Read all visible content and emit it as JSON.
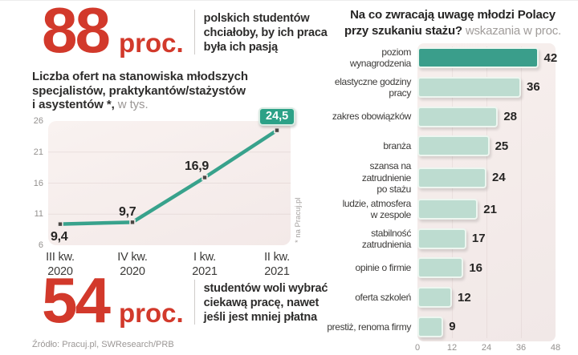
{
  "colors": {
    "accent_red": "#d2392b",
    "teal_dark": "#3a9e8b",
    "teal_light": "#bddcd0",
    "badge_green": "#2ca187",
    "panel_pink": "#f5ecea",
    "text_dark": "#2d2c2b",
    "text_gray": "#9b9795"
  },
  "stat_top": {
    "value": "88",
    "unit": "proc.",
    "lines": [
      "polskich studentów",
      "chciałoby, by ich praca",
      "była ich pasją"
    ]
  },
  "stat_bottom": {
    "value": "54",
    "unit": "proc.",
    "lines": [
      "studentów woli wybrać",
      "ciekawą pracę, nawet",
      "jeśli jest mniej płatna"
    ]
  },
  "source": "Źródło: Pracuj.pl, SWResearch/PRB",
  "chart_data": [
    {
      "type": "line",
      "title": "Liczba ofert na stanowiska młodszych specjalistów, praktykantów/stażystów i asystentów *",
      "title_lines": [
        "Liczba ofert na stanowiska młodszych",
        "specjalistów, praktykantów/stażystów"
      ],
      "title_line3_bold": "i asystentów *,",
      "title_line3_light": "w tys.",
      "footnote": "* na Pracuj.pl",
      "categories": [
        "III kw. 2020",
        "IV kw. 2020",
        "I kw. 2021",
        "II kw. 2021"
      ],
      "category_lines": [
        [
          "III kw.",
          "2020"
        ],
        [
          "IV kw.",
          "2020"
        ],
        [
          "I kw.",
          "2021"
        ],
        [
          "II kw.",
          "2021"
        ]
      ],
      "values": [
        9.4,
        9.7,
        16.9,
        24.5
      ],
      "value_labels": [
        "9,4",
        "9,7",
        "16,9",
        "24,5"
      ],
      "ylim": [
        6,
        26
      ],
      "yticks": [
        26,
        21,
        16,
        11,
        6
      ],
      "grid": "horizontal",
      "legend": "none",
      "line_color": "#38a28c",
      "marker_color": "#4a4744"
    },
    {
      "type": "bar",
      "orientation": "horizontal",
      "title": "Na co zwracają uwagę młodzi Polacy przy szukaniu stażu?",
      "title_line1": "Na co zwracają uwagę młodzi Polacy",
      "title_line2_bold": "przy szukaniu stażu?",
      "subtitle": "wskazania w proc.",
      "categories": [
        "poziom wynagrodzenia",
        "elastyczne godziny pracy",
        "zakres obowiązków",
        "branża",
        "szansa na zatrudnienie po stażu",
        "ludzie, atmosfera w zespole",
        "stabilność zatrudnienia",
        "opinie o firmie",
        "oferta szkoleń",
        "prestiż, renoma firmy"
      ],
      "category_lines": [
        [
          "poziom",
          "wynagrodzenia"
        ],
        [
          "elastyczne godziny",
          "pracy"
        ],
        [
          "zakres obowiązków"
        ],
        [
          "branża"
        ],
        [
          "szansa na zatrudnienie",
          "po stażu"
        ],
        [
          "ludzie, atmosfera",
          "w zespole"
        ],
        [
          "stabilność",
          "zatrudnienia"
        ],
        [
          "opinie o firmie"
        ],
        [
          "oferta szkoleń"
        ],
        [
          "prestiż, renoma firmy"
        ]
      ],
      "values": [
        42,
        36,
        28,
        25,
        24,
        21,
        17,
        16,
        12,
        9
      ],
      "xlim": [
        0,
        48
      ],
      "xticks": [
        0,
        12,
        24,
        36,
        48
      ],
      "highlight_index": 0,
      "bar_color": "#bddcd0",
      "highlight_color": "#3a9e8b",
      "grid": "vertical",
      "legend": "none"
    }
  ]
}
